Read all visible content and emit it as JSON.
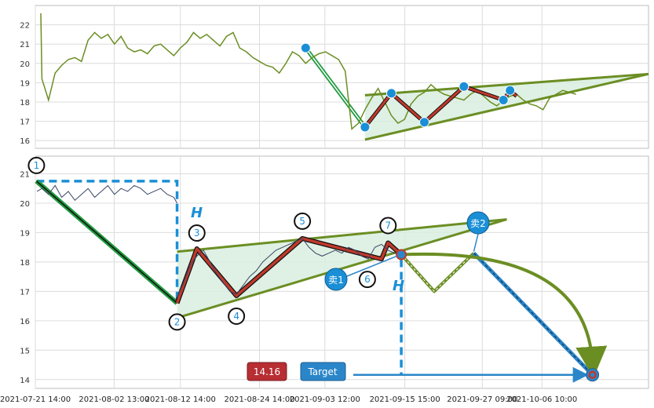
{
  "chart_data": [
    {
      "type": "line",
      "panel": "top",
      "ylim": [
        15.6,
        23.0
      ],
      "y_ticks": [
        "16",
        "17",
        "18",
        "19",
        "20",
        "21",
        "22"
      ],
      "grid": true,
      "x_range": [
        "2021-07-21 14:00",
        "2021-10-22 14:00"
      ],
      "series": [
        {
          "color": "#6b8e23",
          "x": [
            "2021-07-22 10:00",
            "2021-07-22 14:00",
            "2021-07-23 14:00",
            "2021-07-24 14:00",
            "2021-07-25 14:00",
            "2021-07-26 14:00",
            "2021-07-27 14:00",
            "2021-07-28 14:00",
            "2021-07-29 14:00",
            "2021-07-30 14:00",
            "2021-07-31 14:00",
            "2021-08-01 14:00",
            "2021-08-02 14:00",
            "2021-08-03 14:00",
            "2021-08-04 14:00",
            "2021-08-05 14:00",
            "2021-08-06 14:00",
            "2021-08-07 14:00",
            "2021-08-08 14:00",
            "2021-08-09 14:00",
            "2021-08-10 14:00",
            "2021-08-11 14:00",
            "2021-08-12 14:00",
            "2021-08-13 14:00",
            "2021-08-14 14:00",
            "2021-08-15 14:00",
            "2021-08-16 14:00",
            "2021-08-17 14:00",
            "2021-08-18 14:00",
            "2021-08-19 14:00",
            "2021-08-20 14:00",
            "2021-08-21 14:00",
            "2021-08-22 14:00",
            "2021-08-23 14:00",
            "2021-08-24 14:00",
            "2021-08-25 14:00",
            "2021-08-26 14:00",
            "2021-08-27 14:00",
            "2021-08-28 14:00",
            "2021-08-29 14:00",
            "2021-08-30 14:00",
            "2021-08-31 14:00",
            "2021-09-01 14:00",
            "2021-09-02 14:00",
            "2021-09-03 14:00",
            "2021-09-04 14:00",
            "2021-09-05 14:00",
            "2021-09-06 14:00",
            "2021-09-07 14:00",
            "2021-09-08 14:00",
            "2021-09-09 14:00",
            "2021-09-10 14:00",
            "2021-09-11 14:00",
            "2021-09-12 14:00",
            "2021-09-13 14:00",
            "2021-09-14 14:00",
            "2021-09-15 14:00",
            "2021-09-16 14:00",
            "2021-09-17 14:00",
            "2021-09-18 14:00",
            "2021-09-19 14:00",
            "2021-09-20 14:00",
            "2021-09-21 14:00",
            "2021-09-22 14:00",
            "2021-09-23 14:00",
            "2021-09-24 14:00",
            "2021-09-25 14:00",
            "2021-09-26 14:00",
            "2021-09-27 14:00",
            "2021-09-28 14:00",
            "2021-09-29 14:00",
            "2021-09-30 14:00",
            "2021-10-01 14:00",
            "2021-10-02 14:00",
            "2021-10-03 14:00",
            "2021-10-04 14:00",
            "2021-10-05 14:00",
            "2021-10-06 14:00",
            "2021-10-07 14:00",
            "2021-10-08 14:00",
            "2021-10-09 14:00",
            "2021-10-10 14:00",
            "2021-10-11 14:00"
          ],
          "values": [
            22.6,
            19.2,
            18.1,
            19.5,
            19.9,
            20.2,
            20.3,
            20.1,
            21.2,
            21.6,
            21.3,
            21.5,
            21.0,
            21.4,
            20.8,
            20.6,
            20.7,
            20.5,
            20.9,
            21.0,
            20.7,
            20.4,
            20.8,
            21.1,
            21.6,
            21.3,
            21.5,
            21.2,
            20.9,
            21.4,
            21.6,
            20.8,
            20.6,
            20.3,
            20.1,
            19.9,
            19.8,
            19.5,
            20.0,
            20.6,
            20.4,
            20.0,
            20.3,
            20.5,
            20.6,
            20.4,
            20.2,
            19.6,
            16.6,
            16.9,
            17.6,
            18.2,
            18.7,
            18.0,
            17.3,
            16.9,
            17.1,
            17.9,
            18.3,
            18.5,
            18.9,
            18.6,
            18.4,
            18.3,
            18.2,
            18.1,
            18.4,
            18.6,
            18.3,
            18.0,
            17.8,
            18.1,
            18.3,
            18.4,
            18.1,
            17.9,
            17.8,
            17.6,
            18.2,
            18.4,
            18.6,
            18.5,
            18.4
          ]
        }
      ],
      "pattern": {
        "drop_start": {
          "x": "2021-08-31 14:00",
          "y": 20.8
        },
        "drop_end": {
          "x": "2021-09-09 14:00",
          "y": 16.7
        },
        "points": [
          {
            "x": "2021-09-09 14:00",
            "y": 16.7
          },
          {
            "x": "2021-09-13 14:00",
            "y": 18.45
          },
          {
            "x": "2021-09-18 14:00",
            "y": 16.95
          },
          {
            "x": "2021-09-24 14:00",
            "y": 18.8
          },
          {
            "x": "2021-09-30 14:00",
            "y": 18.1
          },
          {
            "x": "2021-10-01 14:00",
            "y": 18.6
          },
          {
            "x": "2021-10-02 14:00",
            "y": 18.3
          }
        ],
        "upper_line": [
          {
            "x": "2021-09-09 14:00",
            "y": 18.35
          },
          {
            "x": "2021-10-22 14:00",
            "y": 19.45
          }
        ],
        "lower_line": [
          {
            "x": "2021-09-09 14:00",
            "y": 16.05
          },
          {
            "x": "2021-10-22 14:00",
            "y": 19.45
          }
        ]
      }
    },
    {
      "type": "line",
      "panel": "bottom",
      "ylim": [
        13.7,
        21.6
      ],
      "y_ticks": [
        "14",
        "15",
        "16",
        "17",
        "18",
        "19",
        "20",
        "21"
      ],
      "grid": true,
      "x_range": [
        "2021-07-21 14:00",
        "2021-10-22 14:00"
      ],
      "x_tick_labels": [
        "2021-07-21 14:00",
        "2021-08-02 13:00",
        "2021-08-12 14:00",
        "2021-08-24 14:00",
        "2021-09-03 12:00",
        "2021-09-15 15:00",
        "2021-09-27 09:00",
        "2021-10-06 10:00"
      ],
      "series": [
        {
          "color": "#3a4566",
          "x": [
            "2021-07-21 20:00",
            "2021-07-22 14:00",
            "2021-07-23 14:00",
            "2021-07-24 14:00",
            "2021-07-25 14:00",
            "2021-07-26 14:00",
            "2021-07-27 14:00",
            "2021-07-28 14:00",
            "2021-07-29 14:00",
            "2021-07-30 14:00",
            "2021-07-31 14:00",
            "2021-08-01 14:00",
            "2021-08-02 14:00",
            "2021-08-03 14:00",
            "2021-08-04 14:00",
            "2021-08-05 14:00",
            "2021-08-06 14:00",
            "2021-08-07 14:00",
            "2021-08-08 14:00",
            "2021-08-09 14:00",
            "2021-08-10 14:00",
            "2021-08-11 14:00",
            "2021-08-12 02:00"
          ],
          "values": [
            20.4,
            20.5,
            20.3,
            20.6,
            20.2,
            20.4,
            20.1,
            20.3,
            20.5,
            20.2,
            20.4,
            20.6,
            20.3,
            20.5,
            20.4,
            20.6,
            20.5,
            20.3,
            20.4,
            20.5,
            20.3,
            20.2,
            20.0
          ]
        },
        {
          "color": "#3a4566",
          "x": [
            "2021-08-12 02:00",
            "2021-08-13 02:00",
            "2021-08-14 02:00",
            "2021-08-15 02:00",
            "2021-08-16 02:00",
            "2021-08-17 02:00",
            "2021-08-18 02:00",
            "2021-08-19 02:00",
            "2021-08-20 02:00",
            "2021-08-21 02:00",
            "2021-08-22 02:00",
            "2021-08-23 02:00",
            "2021-08-24 02:00",
            "2021-08-25 02:00",
            "2021-08-26 02:00",
            "2021-08-27 02:00",
            "2021-08-28 02:00",
            "2021-08-29 02:00",
            "2021-08-30 02:00",
            "2021-08-31 02:00",
            "2021-09-01 02:00",
            "2021-09-02 02:00",
            "2021-09-03 02:00",
            "2021-09-04 02:00",
            "2021-09-05 02:00",
            "2021-09-06 02:00",
            "2021-09-07 02:00",
            "2021-09-08 02:00",
            "2021-09-09 02:00",
            "2021-09-10 02:00",
            "2021-09-11 02:00",
            "2021-09-12 02:00",
            "2021-09-13 02:00",
            "2021-09-14 02:00",
            "2021-09-15 02:00"
          ],
          "values": [
            16.8,
            17.3,
            17.9,
            18.2,
            18.4,
            18.0,
            17.6,
            17.3,
            17.0,
            16.9,
            17.2,
            17.5,
            17.7,
            18.0,
            18.2,
            18.4,
            18.5,
            18.6,
            18.7,
            18.8,
            18.5,
            18.3,
            18.2,
            18.3,
            18.4,
            18.3,
            18.5,
            18.4,
            18.2,
            18.1,
            18.5,
            18.6,
            18.4,
            18.3,
            18.2
          ]
        }
      ],
      "pattern": {
        "points": [
          {
            "label": "1",
            "x": "2021-07-21 18:00",
            "y": 20.75
          },
          {
            "label": "2",
            "x": "2021-08-12 02:00",
            "y": 16.6
          },
          {
            "label": "3",
            "x": "2021-08-15 02:00",
            "y": 18.45
          },
          {
            "label": "4",
            "x": "2021-08-21 02:00",
            "y": 16.85
          },
          {
            "label": "5",
            "x": "2021-08-31 02:00",
            "y": 18.8
          },
          {
            "label": "6",
            "x": "2021-09-12 02:00",
            "y": 18.1
          },
          {
            "label": "7",
            "x": "2021-09-13 02:00",
            "y": 18.65
          },
          {
            "label": "",
            "x": "2021-09-15 02:00",
            "y": 18.25
          }
        ],
        "upper_line": [
          {
            "x": "2021-08-12 02:00",
            "y": 18.35
          },
          {
            "x": "2021-10-01 02:00",
            "y": 19.45
          }
        ],
        "lower_line": [
          {
            "x": "2021-08-12 02:00",
            "y": 16.1
          },
          {
            "x": "2021-10-01 02:00",
            "y": 19.45
          }
        ],
        "height_marker_top": 20.75,
        "projection": [
          {
            "x": "2021-09-15 02:00",
            "y": 18.25
          },
          {
            "x": "2021-09-20 02:00",
            "y": 17.0
          },
          {
            "x": "2021-09-26 02:00",
            "y": 18.3
          }
        ],
        "sell_line": [
          {
            "x": "2021-09-26 02:00",
            "y": 18.3
          },
          {
            "x": "2021-10-14 02:00",
            "y": 14.16
          }
        ],
        "target_value": 14.16,
        "target_point": {
          "x": "2021-10-14 02:00",
          "y": 14.16
        }
      }
    }
  ],
  "labels": {
    "h_marker": "H",
    "sell1": "卖1",
    "sell2": "卖2",
    "target_value_text": "14.16",
    "target_text": "Target"
  },
  "colors": {
    "background": "#ffffff",
    "grid": "#dcdcdc",
    "line_green": "#6b8e23",
    "pattern_red": "#c0392b",
    "triangle_fill": "#d9efdf",
    "blue": "#1a8fd6",
    "drop_green": "#1f9a3f",
    "target_box": "#b72e33",
    "target_label_box": "#2b86c9"
  }
}
